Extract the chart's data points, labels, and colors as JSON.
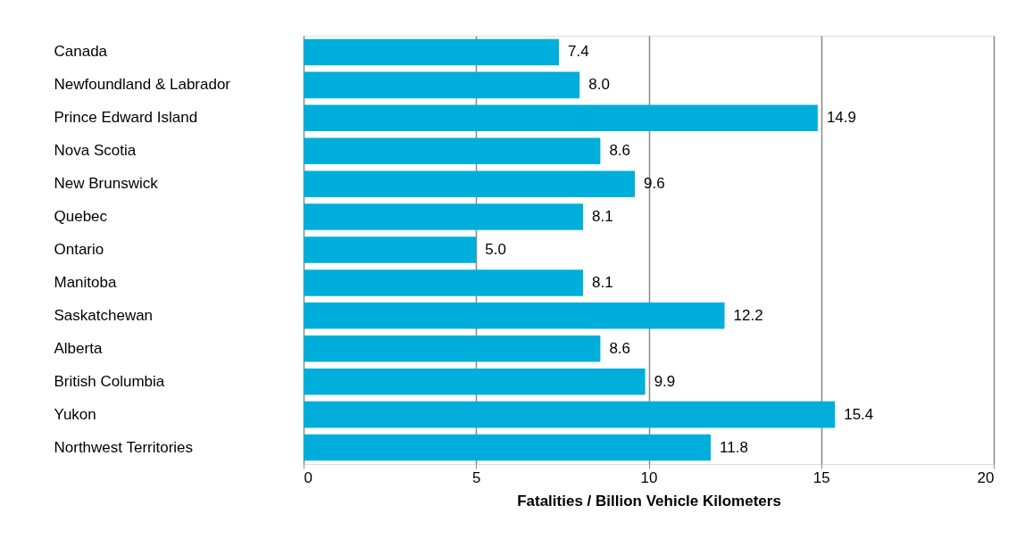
{
  "chart_data": {
    "type": "bar",
    "orientation": "horizontal",
    "xlabel": "Fatalities / Billion Vehicle Kilometers",
    "categories": [
      "Canada",
      "Newfoundland & Labrador",
      "Prince Edward Island",
      "Nova Scotia",
      "New Brunswick",
      "Quebec",
      "Ontario",
      "Manitoba",
      "Saskatchewan",
      "Alberta",
      "British Columbia",
      "Yukon",
      "Northwest Territories"
    ],
    "values": [
      7.4,
      8.0,
      14.9,
      8.6,
      9.6,
      8.1,
      5.0,
      8.1,
      12.2,
      8.6,
      9.9,
      15.4,
      11.8
    ],
    "value_labels": [
      "7.4",
      "8.0",
      "14.9",
      "8.6",
      "9.6",
      "8.1",
      "5.0",
      "8.1",
      "12.2",
      "8.6",
      "9.9",
      "15.4",
      "11.8"
    ],
    "color": "#00aedb",
    "xlim": [
      0,
      20
    ],
    "xticks": [
      0,
      5,
      10,
      15,
      20
    ],
    "grid": "x"
  }
}
